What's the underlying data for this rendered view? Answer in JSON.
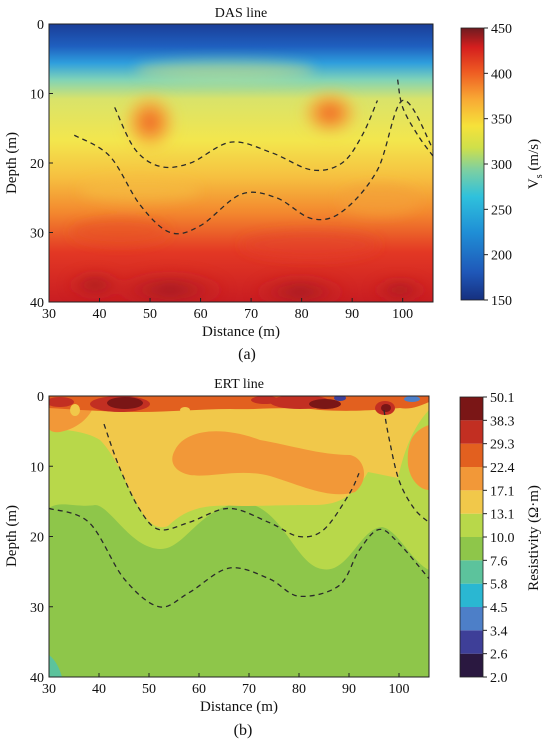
{
  "chart_data": [
    {
      "type": "heatmap",
      "title": "DAS line",
      "panel_label": "(a)",
      "xlabel": "Distance (m)",
      "ylabel": "Depth (m)",
      "xlim": [
        30,
        106
      ],
      "ylim": [
        40,
        0
      ],
      "xticks": [
        "30",
        "40",
        "50",
        "60",
        "70",
        "80",
        "90",
        "100"
      ],
      "yticks": [
        "0",
        "10",
        "20",
        "30",
        "40"
      ],
      "colorbar": {
        "label_main": "V",
        "label_sub": "s",
        "label_unit": " (m/s)",
        "ticks": [
          "150",
          "200",
          "250",
          "300",
          "350",
          "400",
          "450"
        ],
        "range": [
          150,
          450
        ],
        "colors": [
          "#16307f",
          "#1f57b8",
          "#1f8fd6",
          "#2fc1dc",
          "#7fd0a0",
          "#cfe04a",
          "#f6e23a",
          "#f8a834",
          "#ee5a22",
          "#d41e1e",
          "#6e1b20"
        ]
      },
      "layers": [
        {
          "depth_range": [
            0,
            5
          ],
          "vs_approx": 170
        },
        {
          "depth_range": [
            5,
            9
          ],
          "vs_approx": 260
        },
        {
          "depth_range": [
            9,
            20
          ],
          "vs_approx": 330
        },
        {
          "depth_range": [
            20,
            30
          ],
          "vs_approx": 380
        },
        {
          "depth_range": [
            30,
            40
          ],
          "vs_approx": 420
        }
      ],
      "anomalies": [
        {
          "x": 52,
          "depth": 14,
          "vs_approx": 390
        },
        {
          "x": 85,
          "depth": 13,
          "vs_approx": 390
        }
      ],
      "boundaries": [
        {
          "x": [
            43,
            47,
            52,
            58,
            66,
            74,
            82,
            88,
            92,
            95
          ],
          "depth": [
            12,
            18,
            20.5,
            20,
            17,
            18.5,
            21,
            20,
            16,
            11
          ]
        },
        {
          "x": [
            35,
            42,
            48,
            54,
            60,
            68,
            75,
            82,
            88,
            95,
            100,
            106
          ],
          "depth": [
            16,
            19,
            26,
            30,
            29,
            24.5,
            25,
            28,
            27,
            21,
            11,
            18
          ]
        },
        {
          "x": [
            99,
            100,
            103,
            106
          ],
          "depth": [
            8,
            12,
            16,
            19
          ]
        }
      ]
    },
    {
      "type": "heatmap",
      "title": "ERT line",
      "panel_label": "(b)",
      "xlabel": "Distance (m)",
      "ylabel": "Depth (m)",
      "xlim": [
        30,
        106
      ],
      "ylim": [
        40,
        0
      ],
      "xticks": [
        "30",
        "40",
        "50",
        "60",
        "70",
        "80",
        "90",
        "100"
      ],
      "yticks": [
        "0",
        "10",
        "20",
        "30",
        "40"
      ],
      "colorbar": {
        "label": "Resistivity (Ω·m)",
        "levels": [
          "2.0",
          "2.6",
          "3.4",
          "4.5",
          "5.8",
          "7.6",
          "10.0",
          "13.1",
          "17.1",
          "22.4",
          "29.3",
          "38.3",
          "50.1"
        ],
        "colors": [
          "#2a1840",
          "#3e3f98",
          "#4d7fc8",
          "#2ab7d2",
          "#5cc39c",
          "#8ec64a",
          "#b8d84a",
          "#f1c84a",
          "#f29838",
          "#e2601f",
          "#c22f22",
          "#7a1616"
        ]
      },
      "layers": [
        {
          "depth_range": [
            0,
            2
          ],
          "resistivity_approx": 38.3
        },
        {
          "depth_range": [
            2,
            12
          ],
          "resistivity_approx": 17.1
        },
        {
          "depth_range": [
            12,
            20
          ],
          "resistivity_approx": 13.1
        },
        {
          "depth_range": [
            20,
            40
          ],
          "resistivity_approx": 10.0
        }
      ],
      "boundaries": [
        {
          "x": [
            41,
            44,
            48,
            52,
            58,
            66,
            74,
            80,
            85,
            90,
            92
          ],
          "depth": [
            4,
            10,
            16,
            19,
            18,
            16,
            18,
            20,
            19,
            14,
            11
          ]
        },
        {
          "x": [
            30,
            38,
            45,
            52,
            58,
            66,
            74,
            80,
            88,
            92,
            96,
            100,
            106
          ],
          "depth": [
            16,
            18,
            26,
            30,
            28,
            24.5,
            26,
            28.5,
            27,
            22,
            19,
            21,
            26
          ]
        },
        {
          "x": [
            97,
            98,
            100,
            103,
            106
          ],
          "depth": [
            2,
            6,
            12,
            16,
            18
          ]
        }
      ]
    }
  ]
}
